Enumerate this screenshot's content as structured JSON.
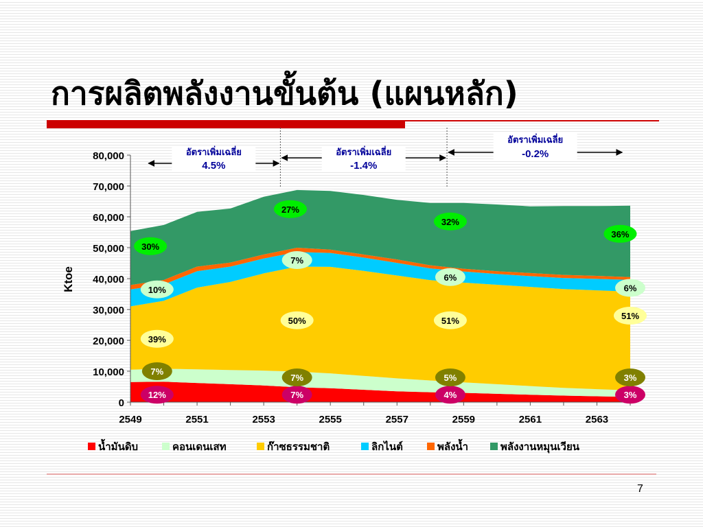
{
  "slide": {
    "title": "การผลิตพลังงานขั้นต้น (แผนหลัก)",
    "page_number": "7"
  },
  "chart_data": {
    "type": "area",
    "stacked": true,
    "ylabel": "Ktoe",
    "ylim": [
      0,
      80000
    ],
    "yticks": [
      0,
      10000,
      20000,
      30000,
      40000,
      50000,
      60000,
      70000,
      80000
    ],
    "ytick_labels": [
      "0",
      "10,000",
      "20,000",
      "30,000",
      "40,000",
      "50,000",
      "60,000",
      "70,000",
      "80,000"
    ],
    "x": [
      2549,
      2550,
      2551,
      2552,
      2553,
      2554,
      2555,
      2556,
      2557,
      2558,
      2559,
      2560,
      2561,
      2562,
      2563,
      2564
    ],
    "xtick_labels": [
      "2549",
      "2551",
      "2553",
      "2555",
      "2557",
      "2559",
      "2561",
      "2563"
    ],
    "legend_position": "bottom",
    "series": [
      {
        "name": "น้ำมันดิบ",
        "color": "#ff0000",
        "values": [
          6500,
          6600,
          6200,
          5800,
          5400,
          4800,
          4500,
          4000,
          3500,
          3200,
          3000,
          2700,
          2400,
          2100,
          1900,
          1700
        ]
      },
      {
        "name": "คอนเดนเสท",
        "color": "#ccffcc",
        "values": [
          4000,
          4200,
          4400,
          4600,
          4800,
          5100,
          4800,
          4500,
          4200,
          3800,
          3400,
          3100,
          2800,
          2500,
          2300,
          2100
        ]
      },
      {
        "name": "ก๊าซธรรมชาติ",
        "color": "#ffcc00",
        "values": [
          20500,
          22000,
          26500,
          28500,
          31500,
          34000,
          34500,
          34000,
          33300,
          32500,
          32300,
          32200,
          32100,
          32000,
          32000,
          32000
        ]
      },
      {
        "name": "ลิกไนต์",
        "color": "#00ccff",
        "values": [
          5500,
          5300,
          5300,
          5000,
          4800,
          4700,
          4500,
          4300,
          4100,
          3800,
          3600,
          3500,
          3500,
          3600,
          3700,
          3800
        ]
      },
      {
        "name": "พลังน้ำ",
        "color": "#ff6600",
        "values": [
          1400,
          1450,
          1500,
          1300,
          1300,
          1400,
          1100,
          1000,
          1100,
          1000,
          900,
          900,
          1000,
          1000,
          1000,
          900
        ]
      },
      {
        "name": "พลังงานหมุนเวียน",
        "color": "#339966",
        "values": [
          17500,
          17800,
          17700,
          17500,
          18700,
          18700,
          19000,
          19300,
          19300,
          20200,
          21300,
          21600,
          21600,
          22300,
          22600,
          23100
        ]
      }
    ],
    "growth_annotations": [
      {
        "label": "อัตราเพิ่มเฉลี่ย",
        "value": "4.5%",
        "from": 2549.5,
        "to": 2553.5
      },
      {
        "label": "อัตราเพิ่มเฉลี่ย",
        "value": "-1.4%",
        "from": 2553.5,
        "to": 2558.5
      },
      {
        "label": "อัตราเพิ่มเฉลี่ย",
        "value": "-0.2%",
        "from": 2558.5,
        "to": 2563.8
      }
    ],
    "share_labels": [
      {
        "text": "12%",
        "year": 2549.8,
        "ktoe": 2400,
        "fill": "#cc0066",
        "color": "#ffffff"
      },
      {
        "text": "7%",
        "year": 2549.8,
        "ktoe": 10000,
        "fill": "#808000",
        "color": "#ffffff"
      },
      {
        "text": "39%",
        "year": 2549.8,
        "ktoe": 20500,
        "fill": "#ffff99",
        "color": "#000000"
      },
      {
        "text": "10%",
        "year": 2549.8,
        "ktoe": 36500,
        "fill": "#ccffcc",
        "color": "#000000"
      },
      {
        "text": "30%",
        "year": 2549.6,
        "ktoe": 50500,
        "fill": "#00ee00",
        "color": "#000000"
      },
      {
        "text": "7%",
        "year": 2554.0,
        "ktoe": 2400,
        "fill": "#cc0066",
        "color": "#ffffff"
      },
      {
        "text": "7%",
        "year": 2554.0,
        "ktoe": 8000,
        "fill": "#808000",
        "color": "#ffffff"
      },
      {
        "text": "50%",
        "year": 2554.0,
        "ktoe": 26500,
        "fill": "#ffff99",
        "color": "#000000"
      },
      {
        "text": "7%",
        "year": 2554.0,
        "ktoe": 46000,
        "fill": "#ccffcc",
        "color": "#000000"
      },
      {
        "text": "27%",
        "year": 2553.8,
        "ktoe": 62500,
        "fill": "#00ee00",
        "color": "#000000"
      },
      {
        "text": "4%",
        "year": 2558.6,
        "ktoe": 2400,
        "fill": "#cc0066",
        "color": "#ffffff"
      },
      {
        "text": "5%",
        "year": 2558.6,
        "ktoe": 8000,
        "fill": "#808000",
        "color": "#ffffff"
      },
      {
        "text": "51%",
        "year": 2558.6,
        "ktoe": 26500,
        "fill": "#ffff99",
        "color": "#000000"
      },
      {
        "text": "6%",
        "year": 2558.6,
        "ktoe": 40500,
        "fill": "#ccffcc",
        "color": "#000000"
      },
      {
        "text": "32%",
        "year": 2558.6,
        "ktoe": 58500,
        "fill": "#00ee00",
        "color": "#000000"
      },
      {
        "text": "3%",
        "year": 2564.0,
        "ktoe": 2400,
        "fill": "#cc0066",
        "color": "#ffffff"
      },
      {
        "text": "3%",
        "year": 2564.0,
        "ktoe": 8000,
        "fill": "#808000",
        "color": "#ffffff"
      },
      {
        "text": "51%",
        "year": 2564.0,
        "ktoe": 28000,
        "fill": "#ffff99",
        "color": "#000000"
      },
      {
        "text": "6%",
        "year": 2564.0,
        "ktoe": 37000,
        "fill": "#ccffcc",
        "color": "#000000"
      },
      {
        "text": "36%",
        "year": 2563.7,
        "ktoe": 54500,
        "fill": "#00ee00",
        "color": "#000000"
      }
    ]
  }
}
